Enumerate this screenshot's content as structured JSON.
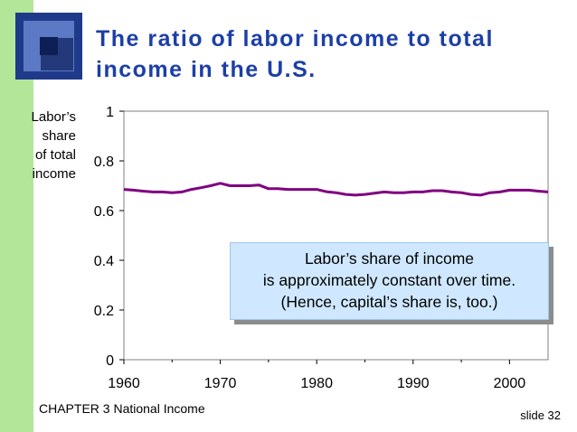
{
  "slide": {
    "title_line1": "The ratio of labor income to total",
    "title_line2": "income in the U.S.",
    "footer_chapter": "CHAPTER 3   National Income",
    "slide_number": "slide 32",
    "accent_color": "#1c3fa6",
    "sidebar_color": "#b3e699"
  },
  "callout": {
    "line1": "Labor’s share of income",
    "line2": "is approximately constant over time.",
    "line3": "(Hence, capital’s share is, too.)"
  },
  "chart_data": {
    "type": "line",
    "ylabel_lines": [
      "Labor’s",
      "share",
      "of total",
      "income"
    ],
    "xlabel": "",
    "xlim": [
      1960,
      2004
    ],
    "ylim": [
      0,
      1
    ],
    "x_ticks": [
      1960,
      1970,
      1980,
      1990,
      2000
    ],
    "y_ticks": [
      {
        "value": 0,
        "label": "0"
      },
      {
        "value": 0.2,
        "label": "0.2"
      },
      {
        "value": 0.4,
        "label": "0.4"
      },
      {
        "value": 0.6,
        "label": "0.6"
      },
      {
        "value": 0.8,
        "label": "0.8"
      },
      {
        "value": 1,
        "label": "1"
      }
    ],
    "grid": false,
    "series": [
      {
        "color": "#800080",
        "x": [
          1960,
          1961,
          1962,
          1963,
          1964,
          1965,
          1966,
          1967,
          1968,
          1969,
          1970,
          1971,
          1972,
          1973,
          1974,
          1975,
          1976,
          1977,
          1978,
          1979,
          1980,
          1981,
          1982,
          1983,
          1984,
          1985,
          1986,
          1987,
          1988,
          1989,
          1990,
          1991,
          1992,
          1993,
          1994,
          1995,
          1996,
          1997,
          1998,
          1999,
          2000,
          2001,
          2002,
          2003,
          2004
        ],
        "y": [
          0.685,
          0.682,
          0.678,
          0.675,
          0.675,
          0.672,
          0.675,
          0.685,
          0.692,
          0.7,
          0.71,
          0.7,
          0.7,
          0.7,
          0.703,
          0.688,
          0.688,
          0.685,
          0.685,
          0.685,
          0.685,
          0.676,
          0.672,
          0.665,
          0.662,
          0.665,
          0.67,
          0.675,
          0.672,
          0.672,
          0.675,
          0.675,
          0.68,
          0.68,
          0.675,
          0.672,
          0.665,
          0.662,
          0.672,
          0.675,
          0.682,
          0.682,
          0.682,
          0.678,
          0.675
        ]
      }
    ]
  }
}
